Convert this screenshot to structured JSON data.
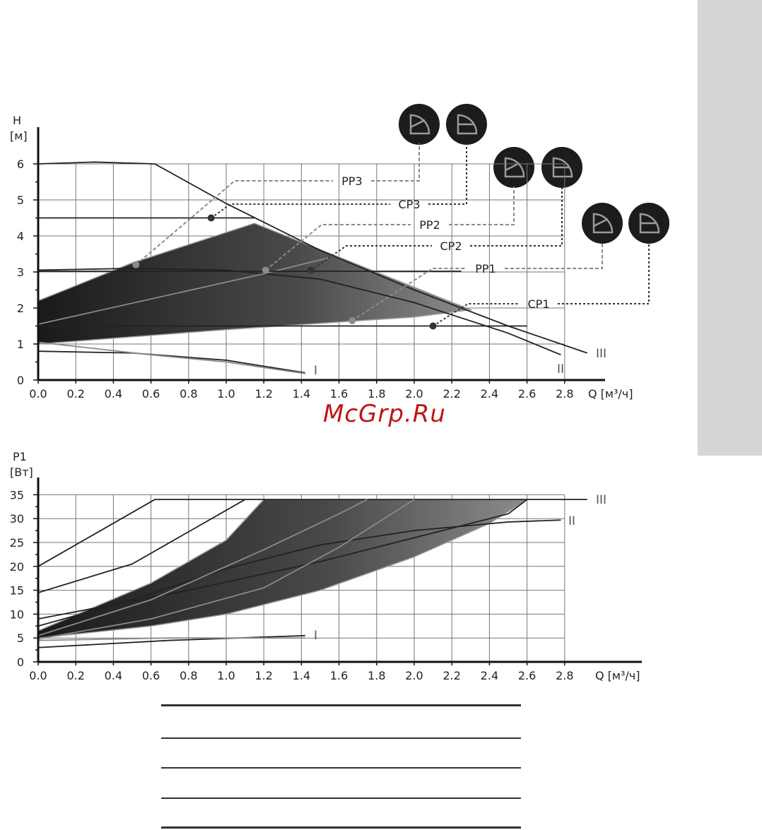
{
  "colors": {
    "band_dark": "#1a1a1a",
    "band_light": "#8c8c8c",
    "curve": "#222222",
    "grey_curve": "#8a8a8a",
    "grid": "#777777",
    "icon_bg": "#1c1c1c",
    "side_tab": "#d6d6d6",
    "watermark": "#c01515"
  },
  "watermark": "McGrp.Ru",
  "chart_data": [
    {
      "type": "line",
      "ylabel_line1": "H",
      "ylabel_line2": "[м]",
      "xlabel": "Q [м³/ч]",
      "x_ticks": [
        "0.0",
        "0.2",
        "0.4",
        "0.6",
        "0.8",
        "1.0",
        "1.2",
        "1.4",
        "1.6",
        "1.8",
        "2.0",
        "2.2",
        "2.4",
        "2.6",
        "2.8"
      ],
      "y_ticks": [
        "0",
        "1",
        "2",
        "3",
        "4",
        "5",
        "6"
      ],
      "xlim": [
        0,
        3.0
      ],
      "ylim": [
        0,
        6.6
      ],
      "grid": true,
      "band": {
        "upper": [
          [
            0,
            2.2
          ],
          [
            0.5,
            3.25
          ],
          [
            1.15,
            4.35
          ],
          [
            2.3,
            1.95
          ]
        ],
        "lower": [
          [
            0,
            1.0
          ],
          [
            1.0,
            1.4
          ],
          [
            2.0,
            1.75
          ],
          [
            2.3,
            1.95
          ]
        ]
      },
      "series": [
        {
          "name": "III",
          "style": "dark",
          "points": [
            [
              0,
              6.0
            ],
            [
              0.3,
              6.05
            ],
            [
              0.62,
              6.0
            ],
            [
              1.0,
              4.9
            ],
            [
              1.5,
              3.6
            ],
            [
              2.0,
              2.5
            ],
            [
              2.5,
              1.5
            ],
            [
              2.92,
              0.75
            ]
          ]
        },
        {
          "name": "II",
          "style": "dark",
          "points": [
            [
              0,
              3.05
            ],
            [
              0.5,
              3.1
            ],
            [
              1.0,
              3.05
            ],
            [
              1.5,
              2.8
            ],
            [
              2.0,
              2.15
            ],
            [
              2.5,
              1.3
            ],
            [
              2.78,
              0.7
            ]
          ]
        },
        {
          "name": "I",
          "style": "dark",
          "points": [
            [
              0,
              0.8
            ],
            [
              0.5,
              0.75
            ],
            [
              1.0,
              0.55
            ],
            [
              1.42,
              0.2
            ]
          ]
        },
        {
          "name": "",
          "style": "grey",
          "points": [
            [
              0,
              1.05
            ],
            [
              0.6,
              0.7
            ],
            [
              1.0,
              0.5
            ],
            [
              1.42,
              0.18
            ]
          ]
        },
        {
          "name": "",
          "style": "dark",
          "points": [
            [
              0,
              4.5
            ],
            [
              1.15,
              4.5
            ]
          ]
        },
        {
          "name": "",
          "style": "dark",
          "points": [
            [
              0,
              1.5
            ],
            [
              2.6,
              1.5
            ]
          ]
        },
        {
          "name": "",
          "style": "grey",
          "points": [
            [
              0,
              1.55
            ],
            [
              1.2,
              2.95
            ],
            [
              1.55,
              3.4
            ]
          ]
        },
        {
          "name": "",
          "style": "dark",
          "points": [
            [
              0,
              3.02
            ],
            [
              2.25,
              3.02
            ]
          ]
        }
      ],
      "markers": [
        {
          "label": "PP3",
          "q": 0.52,
          "h": 3.2,
          "color": "#8a8a8a",
          "style": "dashed",
          "icon": "proportional-pressure-icon"
        },
        {
          "label": "CP3",
          "q": 0.92,
          "h": 4.5,
          "color": "#333333",
          "style": "dotted",
          "icon": "constant-pressure-icon"
        },
        {
          "label": "PP2",
          "q": 1.21,
          "h": 3.05,
          "color": "#8a8a8a",
          "style": "dashed",
          "icon": "proportional-pressure-icon"
        },
        {
          "label": "CP2",
          "q": 1.45,
          "h": 3.05,
          "color": "#333333",
          "style": "dotted",
          "icon": "constant-pressure-icon"
        },
        {
          "label": "PP1",
          "q": 1.67,
          "h": 1.65,
          "color": "#8a8a8a",
          "style": "dashed",
          "icon": "proportional-pressure-icon"
        },
        {
          "label": "CP1",
          "q": 2.1,
          "h": 1.5,
          "color": "#333333",
          "style": "dotted",
          "icon": "constant-pressure-icon"
        }
      ],
      "curve_labels": [
        "I",
        "II",
        "III"
      ]
    },
    {
      "type": "line",
      "ylabel_line1": "P1",
      "ylabel_line2": "[Вт]",
      "xlabel": "Q [м³/ч]",
      "x_ticks": [
        "0.0",
        "0.2",
        "0.4",
        "0.6",
        "0.8",
        "1.0",
        "1.2",
        "1.4",
        "1.6",
        "1.8",
        "2.0",
        "2.2",
        "2.4",
        "2.6",
        "2.8"
      ],
      "y_ticks": [
        "0",
        "5",
        "10",
        "15",
        "20",
        "25",
        "30",
        "35"
      ],
      "xlim": [
        0,
        3.0
      ],
      "ylim": [
        0,
        36.5
      ],
      "grid": true,
      "band": {
        "upper": [
          [
            0,
            6.5
          ],
          [
            0.6,
            16.5
          ],
          [
            1.0,
            25.5
          ],
          [
            1.2,
            34
          ]
        ],
        "lower": [
          [
            0,
            5.0
          ],
          [
            0.6,
            7.5
          ],
          [
            1.0,
            10.0
          ],
          [
            1.5,
            15.0
          ],
          [
            2.0,
            22.0
          ],
          [
            2.4,
            29.0
          ],
          [
            2.6,
            34.0
          ]
        ]
      },
      "series": [
        {
          "name": "III",
          "style": "dark",
          "points": [
            [
              0,
              20
            ],
            [
              0.62,
              34
            ],
            [
              2.92,
              34
            ]
          ]
        },
        {
          "name": "",
          "style": "dark",
          "points": [
            [
              0,
              14.5
            ],
            [
              0.5,
              20.5
            ],
            [
              1.1,
              34
            ]
          ]
        },
        {
          "name": "",
          "style": "dark",
          "points": [
            [
              0,
              9
            ],
            [
              0.8,
              15.0
            ],
            [
              1.5,
              21.0
            ],
            [
              2.0,
              26.0
            ],
            [
              2.5,
              31.0
            ],
            [
              2.6,
              34
            ]
          ]
        },
        {
          "name": "II",
          "style": "dark",
          "points": [
            [
              0,
              7.5
            ],
            [
              0.5,
              13.0
            ],
            [
              1.0,
              19.5
            ],
            [
              1.5,
              24.5
            ],
            [
              2.0,
              27.5
            ],
            [
              2.5,
              29.3
            ],
            [
              2.78,
              29.7
            ]
          ]
        },
        {
          "name": "",
          "style": "grey",
          "points": [
            [
              0,
              5.5
            ],
            [
              0.6,
              13.0
            ],
            [
              1.2,
              23.5
            ],
            [
              1.6,
              31.0
            ],
            [
              1.75,
              34
            ]
          ]
        },
        {
          "name": "",
          "style": "grey",
          "points": [
            [
              0,
              4.8
            ],
            [
              0.6,
              9.0
            ],
            [
              1.2,
              15.5
            ],
            [
              1.6,
              24.0
            ],
            [
              2.0,
              34
            ]
          ]
        },
        {
          "name": "I",
          "style": "dark",
          "points": [
            [
              0,
              3.0
            ],
            [
              0.7,
              4.5
            ],
            [
              1.42,
              5.5
            ]
          ]
        },
        {
          "name": "",
          "style": "grey",
          "points": [
            [
              0,
              4.5
            ],
            [
              0.7,
              5.0
            ],
            [
              1.42,
              5.0
            ]
          ]
        }
      ],
      "curve_labels": [
        "I",
        "II",
        "III"
      ]
    }
  ]
}
